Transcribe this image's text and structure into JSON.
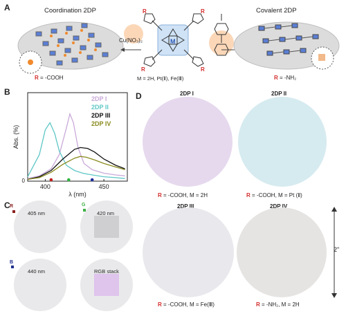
{
  "panel_a": {
    "label": "A",
    "left_title": "Coordination 2DP",
    "right_title": "Covalent 2DP",
    "reagent_left": "Cu(NO₃)₂",
    "r_label": "R",
    "metal_label": "M",
    "metal_caption": "M = 2H, Pt(Ⅱ), Fe(Ⅲ)",
    "left_r_caption_r": "R",
    "left_r_caption": " = -COOH",
    "right_r_caption_r": "R",
    "right_r_caption": " = -NH₂"
  },
  "panel_b": {
    "label": "B"
  },
  "panel_c": {
    "label": "C",
    "cells": [
      {
        "text": "405 nm",
        "marker": "R",
        "marker_color": "#8b2020"
      },
      {
        "text": "420 nm",
        "marker": "G",
        "marker_color": "#3cb043"
      },
      {
        "text": "440 nm",
        "marker": "B",
        "marker_color": "#1f2f8f"
      },
      {
        "text": "RGB stack",
        "marker": "",
        "marker_color": ""
      }
    ]
  },
  "panel_d": {
    "label": "D",
    "size_label": "2\"",
    "disks": [
      {
        "title": "2DP I",
        "cap_r": "R",
        "caption": " = -COOH, M = 2H",
        "color": "#e6d9ee"
      },
      {
        "title": "2DP II",
        "cap_r": "R",
        "caption": " = -COOH, M = Pt (Ⅱ)",
        "color": "#d6ebf0"
      },
      {
        "title": "2DP III",
        "cap_r": "R",
        "caption": " = -COOH, M = Fe(Ⅲ)",
        "color": "#e8e8ed"
      },
      {
        "title": "2DP IV",
        "cap_r": "R",
        "caption": " = -NH₂, M = 2H",
        "color": "#e6e4e2"
      }
    ]
  },
  "chart_data": {
    "type": "line",
    "xlabel": "λ (nm)",
    "ylabel": "Abs. (%)",
    "xticks": [
      "400",
      "450"
    ],
    "xlim": [
      385,
      470
    ],
    "ylim": [
      0,
      1
    ],
    "grid": false,
    "legend_position": "top-right",
    "series": [
      {
        "name": "2DP I",
        "color": "#c9a9d9",
        "x": [
          385,
          395,
          405,
          412,
          418,
          421,
          424,
          428,
          433,
          440,
          450,
          460,
          468
        ],
        "y": [
          0.03,
          0.06,
          0.14,
          0.3,
          0.6,
          0.76,
          0.66,
          0.38,
          0.2,
          0.13,
          0.09,
          0.07,
          0.06
        ]
      },
      {
        "name": "2DP II",
        "color": "#5fc7c6",
        "x": [
          385,
          395,
          400,
          404,
          408,
          412,
          418,
          425,
          432,
          440,
          450,
          460,
          468
        ],
        "y": [
          0.05,
          0.3,
          0.58,
          0.66,
          0.54,
          0.34,
          0.18,
          0.12,
          0.09,
          0.07,
          0.05,
          0.04,
          0.03
        ]
      },
      {
        "name": "2DP III",
        "color": "#111111",
        "x": [
          385,
          395,
          405,
          415,
          425,
          430,
          436,
          442,
          450,
          460,
          468
        ],
        "y": [
          0.02,
          0.05,
          0.12,
          0.25,
          0.36,
          0.38,
          0.37,
          0.33,
          0.25,
          0.18,
          0.14
        ]
      },
      {
        "name": "2DP IV",
        "color": "#8a8a1e",
        "x": [
          385,
          395,
          405,
          415,
          425,
          430,
          435,
          442,
          450,
          460,
          468
        ],
        "y": [
          0.02,
          0.04,
          0.1,
          0.19,
          0.26,
          0.28,
          0.27,
          0.24,
          0.2,
          0.16,
          0.13
        ]
      }
    ],
    "markers": [
      {
        "x": 405,
        "color": "#c21f1f"
      },
      {
        "x": 420,
        "color": "#2db63f"
      },
      {
        "x": 440,
        "color": "#1f2f9f"
      }
    ]
  }
}
